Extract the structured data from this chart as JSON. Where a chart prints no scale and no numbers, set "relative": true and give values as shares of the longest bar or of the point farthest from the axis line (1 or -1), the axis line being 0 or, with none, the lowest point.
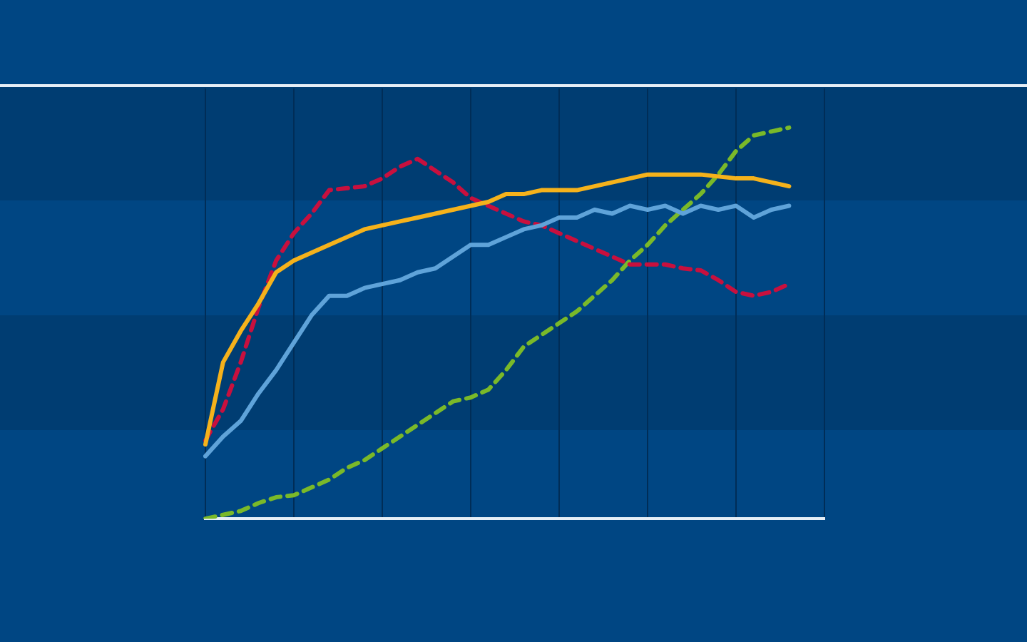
{
  "chart_data": {
    "type": "line",
    "relative": true,
    "grid": "x",
    "legend": false,
    "marker": "none",
    "categories": [
      null,
      null,
      null,
      null,
      null,
      null,
      null,
      null,
      null,
      null,
      null,
      null,
      null,
      null,
      null,
      null,
      null,
      null,
      null,
      null,
      null,
      null,
      null,
      null,
      null,
      null,
      null,
      null,
      null,
      null,
      null,
      null,
      null,
      null,
      null,
      null
    ],
    "series": [
      {
        "color": "#f5b21b",
        "line_style": "solid",
        "values": [
          0.19,
          0.4,
          0.48,
          0.55,
          0.63,
          0.66,
          0.68,
          0.7,
          0.72,
          0.74,
          0.75,
          0.76,
          0.77,
          0.78,
          0.79,
          0.8,
          0.81,
          0.83,
          0.83,
          0.84,
          0.84,
          0.84,
          0.85,
          0.86,
          0.87,
          0.88,
          0.88,
          0.88,
          0.88,
          0.875,
          0.87,
          0.87,
          0.86,
          0.85,
          null,
          null
        ]
      },
      {
        "color": "#5fa3d9",
        "line_style": "solid",
        "values": [
          0.16,
          0.21,
          0.25,
          0.32,
          0.38,
          0.45,
          0.52,
          0.57,
          0.57,
          0.59,
          0.6,
          0.61,
          0.63,
          0.64,
          0.67,
          0.7,
          0.7,
          0.72,
          0.74,
          0.75,
          0.77,
          0.77,
          0.79,
          0.78,
          0.8,
          0.79,
          0.8,
          0.78,
          0.8,
          0.79,
          0.8,
          0.77,
          0.79,
          0.8,
          null,
          null
        ]
      },
      {
        "color": "#c8103e",
        "line_style": "dashed",
        "values": [
          0.2,
          0.28,
          0.4,
          0.54,
          0.66,
          0.73,
          0.78,
          0.84,
          0.845,
          0.85,
          0.87,
          0.9,
          0.92,
          0.89,
          0.86,
          0.82,
          0.8,
          0.78,
          0.76,
          0.75,
          0.73,
          0.71,
          0.69,
          0.67,
          0.65,
          0.65,
          0.65,
          0.64,
          0.635,
          0.61,
          0.58,
          0.57,
          0.58,
          0.6,
          null,
          null
        ]
      },
      {
        "color": "#7ab929",
        "line_style": "dashed",
        "values": [
          0,
          0.01,
          0.02,
          0.04,
          0.055,
          0.06,
          0.08,
          0.1,
          0.13,
          0.15,
          0.18,
          0.21,
          0.24,
          0.27,
          0.3,
          0.31,
          0.33,
          0.38,
          0.44,
          0.47,
          0.5,
          0.53,
          0.57,
          0.61,
          0.66,
          0.7,
          0.75,
          0.79,
          0.83,
          0.88,
          0.94,
          0.98,
          0.99,
          1.0,
          null,
          null
        ]
      }
    ]
  }
}
